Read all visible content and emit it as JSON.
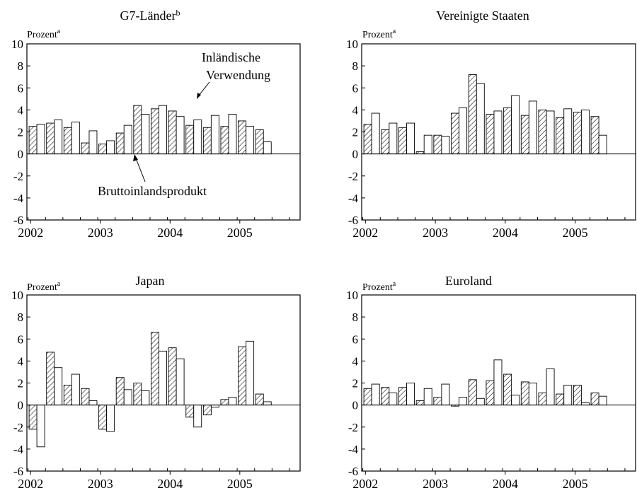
{
  "chart_data": [
    {
      "type": "bar",
      "title": "G7-Länder",
      "title_sup": "b",
      "ylabel": "Prozent",
      "ylabel_sup": "a",
      "ylim": [
        -6,
        10
      ],
      "yticks": [
        10,
        8,
        6,
        4,
        2,
        0,
        -2,
        -4,
        -6
      ],
      "xticks": [
        "2002",
        "2003",
        "2004",
        "2005"
      ],
      "categories": [
        "2002Q1",
        "2002Q2",
        "2002Q3",
        "2002Q4",
        "2003Q1",
        "2003Q2",
        "2003Q3",
        "2003Q4",
        "2004Q1",
        "2004Q2",
        "2004Q3",
        "2004Q4",
        "2005Q1",
        "2005Q2"
      ],
      "series": [
        {
          "name": "Bruttoinlandsprodukt",
          "values": [
            2.5,
            2.8,
            2.4,
            1.0,
            0.9,
            1.9,
            4.4,
            4.1,
            3.9,
            2.6,
            2.4,
            2.5,
            3.0,
            2.2
          ]
        },
        {
          "name": "Inländische Verwendung",
          "values": [
            2.7,
            3.1,
            2.9,
            2.1,
            1.2,
            2.6,
            3.6,
            4.4,
            3.4,
            3.1,
            3.5,
            3.6,
            2.5,
            1.1
          ]
        }
      ],
      "annotations": [
        "Inländische",
        "Verwendung",
        "Bruttoinlandsprodukt"
      ]
    },
    {
      "type": "bar",
      "title": "Vereinigte Staaten",
      "ylabel": "Prozent",
      "ylabel_sup": "a",
      "ylim": [
        -6,
        10
      ],
      "yticks": [
        10,
        8,
        6,
        4,
        2,
        0,
        -2,
        -4,
        -6
      ],
      "xticks": [
        "2002",
        "2003",
        "2004",
        "2005"
      ],
      "categories": [
        "2002Q1",
        "2002Q2",
        "2002Q3",
        "2002Q4",
        "2003Q1",
        "2003Q2",
        "2003Q3",
        "2003Q4",
        "2004Q1",
        "2004Q2",
        "2004Q3",
        "2004Q4",
        "2005Q1",
        "2005Q2"
      ],
      "series": [
        {
          "name": "Bruttoinlandsprodukt",
          "values": [
            2.7,
            2.2,
            2.4,
            0.2,
            1.7,
            3.7,
            7.2,
            3.6,
            4.2,
            3.5,
            4.0,
            3.3,
            3.8,
            3.4
          ]
        },
        {
          "name": "Inländische Verwendung",
          "values": [
            3.7,
            2.8,
            2.8,
            1.7,
            1.6,
            4.2,
            6.4,
            3.9,
            5.3,
            4.8,
            3.9,
            4.1,
            4.0,
            1.7
          ]
        }
      ]
    },
    {
      "type": "bar",
      "title": "Japan",
      "ylabel": "Prozent",
      "ylabel_sup": "a",
      "ylim": [
        -6,
        10
      ],
      "yticks": [
        10,
        8,
        6,
        4,
        2,
        0,
        -2,
        -4,
        -6
      ],
      "xticks": [
        "2002",
        "2003",
        "2004",
        "2005"
      ],
      "categories": [
        "2002Q1",
        "2002Q2",
        "2002Q3",
        "2002Q4",
        "2003Q1",
        "2003Q2",
        "2003Q3",
        "2003Q4",
        "2004Q1",
        "2004Q2",
        "2004Q3",
        "2004Q4",
        "2005Q1",
        "2005Q2"
      ],
      "series": [
        {
          "name": "Bruttoinlandsprodukt",
          "values": [
            -2.2,
            4.8,
            1.8,
            1.5,
            -2.2,
            2.5,
            2.0,
            6.6,
            5.2,
            -1.1,
            -0.9,
            0.5,
            5.3,
            1.0
          ]
        },
        {
          "name": "Inländische Verwendung",
          "values": [
            -3.8,
            3.4,
            2.8,
            0.4,
            -2.4,
            1.4,
            1.3,
            4.9,
            4.2,
            -2.0,
            -0.2,
            0.7,
            5.8,
            0.3
          ]
        }
      ]
    },
    {
      "type": "bar",
      "title": "Euroland",
      "ylabel": "Prozent",
      "ylabel_sup": "a",
      "ylim": [
        -6,
        10
      ],
      "yticks": [
        10,
        8,
        6,
        4,
        2,
        0,
        -2,
        -4,
        -6
      ],
      "xticks": [
        "2002",
        "2003",
        "2004",
        "2005"
      ],
      "categories": [
        "2002Q1",
        "2002Q2",
        "2002Q3",
        "2002Q4",
        "2003Q1",
        "2003Q2",
        "2003Q3",
        "2003Q4",
        "2004Q1",
        "2004Q2",
        "2004Q3",
        "2004Q4",
        "2005Q1",
        "2005Q2"
      ],
      "series": [
        {
          "name": "Bruttoinlandsprodukt",
          "values": [
            1.5,
            1.6,
            1.6,
            0.4,
            0.7,
            -0.1,
            2.3,
            2.2,
            2.8,
            2.1,
            1.1,
            1.0,
            1.8,
            1.1
          ]
        },
        {
          "name": "Inländische Verwendung",
          "values": [
            1.9,
            1.1,
            2.0,
            1.5,
            1.9,
            0.7,
            0.6,
            4.1,
            0.9,
            2.0,
            3.3,
            1.8,
            0.2,
            0.8
          ]
        }
      ]
    }
  ]
}
